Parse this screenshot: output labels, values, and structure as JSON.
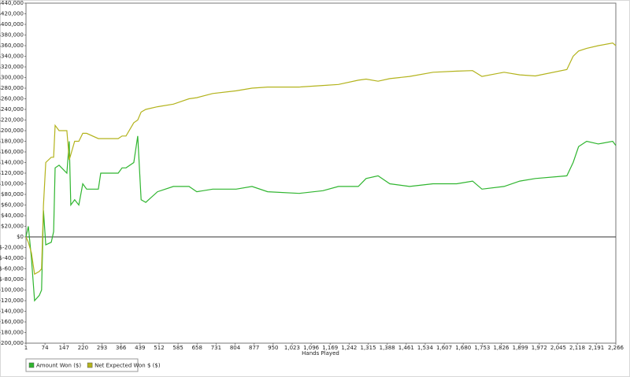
{
  "chart_data": {
    "type": "line",
    "xlabel": "Hands Played",
    "x": [
      1,
      10,
      22,
      34,
      52,
      61,
      68,
      77,
      98,
      107,
      113,
      128,
      158,
      167,
      173,
      188,
      204,
      219,
      234,
      279,
      288,
      355,
      370,
      385,
      415,
      430,
      443,
      461,
      506,
      567,
      627,
      657,
      718,
      808,
      869,
      929,
      1050,
      1141,
      1201,
      1277,
      1307,
      1353,
      1398,
      1474,
      1564,
      1655,
      1716,
      1752,
      1837,
      1897,
      1957,
      2078,
      2102,
      2123,
      2154,
      2199,
      2254,
      2266
    ],
    "series": [
      {
        "name": "Amount Won ($)",
        "color": "#2fb52f",
        "values": [
          0,
          20000,
          -40000,
          -120000,
          -110000,
          -100000,
          50000,
          -15000,
          -10000,
          10000,
          130000,
          135000,
          120000,
          180000,
          60000,
          70000,
          60000,
          100000,
          90000,
          90000,
          120000,
          120000,
          130000,
          130000,
          140000,
          190000,
          70000,
          65000,
          85000,
          95000,
          95000,
          85000,
          90000,
          90000,
          95000,
          85000,
          82000,
          87000,
          95000,
          95000,
          110000,
          115000,
          100000,
          95000,
          100000,
          100000,
          105000,
          90000,
          95000,
          105000,
          110000,
          115000,
          140000,
          170000,
          180000,
          175000,
          180000,
          172000
        ]
      },
      {
        "name": "Net Expected Won $ ($)",
        "color": "#b3b31c",
        "values": [
          0,
          -10000,
          -30000,
          -70000,
          -65000,
          -60000,
          60000,
          140000,
          150000,
          150000,
          210000,
          200000,
          200000,
          145000,
          155000,
          180000,
          180000,
          195000,
          195000,
          185000,
          185000,
          185000,
          190000,
          190000,
          215000,
          220000,
          235000,
          240000,
          245000,
          250000,
          260000,
          262000,
          270000,
          275000,
          280000,
          282000,
          282000,
          285000,
          287000,
          295000,
          297000,
          293000,
          298000,
          302000,
          310000,
          312000,
          313000,
          302000,
          310000,
          305000,
          303000,
          315000,
          340000,
          350000,
          355000,
          360000,
          365000,
          360000
        ]
      }
    ],
    "xlim": [
      1,
      2266
    ],
    "xticks": [
      1,
      74,
      147,
      220,
      293,
      366,
      439,
      512,
      585,
      658,
      731,
      804,
      877,
      950,
      {
        "value": 1023,
        "label": "1,023"
      },
      {
        "value": 1096,
        "label": "1,096"
      },
      {
        "value": 1169,
        "label": "1,169"
      },
      {
        "value": 1242,
        "label": "1,242"
      },
      {
        "value": 1315,
        "label": "1,315"
      },
      {
        "value": 1388,
        "label": "1,388"
      },
      {
        "value": 1461,
        "label": "1,461"
      },
      {
        "value": 1534,
        "label": "1,534"
      },
      {
        "value": 1607,
        "label": "1,607"
      },
      {
        "value": 1680,
        "label": "1,680"
      },
      {
        "value": 1753,
        "label": "1,753"
      },
      {
        "value": 1826,
        "label": "1,826"
      },
      {
        "value": 1899,
        "label": "1,899"
      },
      {
        "value": 1972,
        "label": "1,972"
      },
      {
        "value": 2045,
        "label": "2,045"
      },
      {
        "value": 2118,
        "label": "2,118"
      },
      {
        "value": 2191,
        "label": "2,191"
      },
      {
        "value": 2266,
        "label": "2,266"
      }
    ],
    "ylim": [
      -200000,
      440000
    ],
    "yticks": [
      {
        "value": 440000,
        "label": "$440,000"
      },
      {
        "value": 420000,
        "label": "$420,000"
      },
      {
        "value": 400000,
        "label": "$400,000"
      },
      {
        "value": 380000,
        "label": "$380,000"
      },
      {
        "value": 360000,
        "label": "$360,000"
      },
      {
        "value": 340000,
        "label": "$340,000"
      },
      {
        "value": 320000,
        "label": "$320,000"
      },
      {
        "value": 300000,
        "label": "$300,000"
      },
      {
        "value": 280000,
        "label": "$280,000"
      },
      {
        "value": 260000,
        "label": "$260,000"
      },
      {
        "value": 240000,
        "label": "$240,000"
      },
      {
        "value": 220000,
        "label": "$220,000"
      },
      {
        "value": 200000,
        "label": "$200,000"
      },
      {
        "value": 180000,
        "label": "$180,000"
      },
      {
        "value": 160000,
        "label": "$160,000"
      },
      {
        "value": 140000,
        "label": "$140,000"
      },
      {
        "value": 120000,
        "label": "$120,000"
      },
      {
        "value": 100000,
        "label": "$100,000"
      },
      {
        "value": 80000,
        "label": "$80,000"
      },
      {
        "value": 60000,
        "label": "$60,000"
      },
      {
        "value": 40000,
        "label": "$40,000"
      },
      {
        "value": 20000,
        "label": "$20,000"
      },
      {
        "value": 0,
        "label": "$0"
      },
      {
        "value": -20000,
        "label": "$-20,000"
      },
      {
        "value": -40000,
        "label": "$-40,000"
      },
      {
        "value": -60000,
        "label": "$-60,000"
      },
      {
        "value": -80000,
        "label": "$-80,000"
      },
      {
        "value": -100000,
        "label": "$-100,000"
      },
      {
        "value": -120000,
        "label": "$-120,000"
      },
      {
        "value": -140000,
        "label": "$-140,000"
      },
      {
        "value": -160000,
        "label": "$-160,000"
      },
      {
        "value": -180000,
        "label": "$-180,000"
      },
      {
        "value": -200000,
        "label": "$-200,000"
      }
    ],
    "zero_line": true,
    "legend": "bottom-left"
  }
}
